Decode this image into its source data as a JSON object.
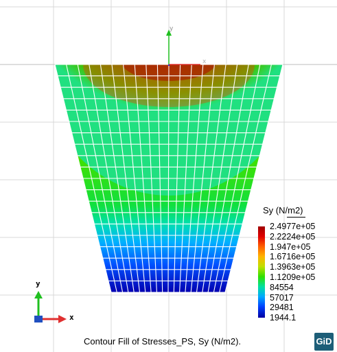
{
  "legend": {
    "title": "Sy (N/m2)",
    "labels": [
      "2.4977e+05",
      "2.2224e+05",
      "1.947e+05",
      "1.6716e+05",
      "1.3963e+05",
      "1.1209e+05",
      "84554",
      "57017",
      "29481",
      "1944.1"
    ],
    "colors": [
      "#8b0000",
      "#e00000",
      "#ff5a00",
      "#ffb000",
      "#c8e000",
      "#38e000",
      "#00e0a0",
      "#00a8ff",
      "#0040ff",
      "#0000a0"
    ]
  },
  "caption": "Contour Fill of Stresses_PS, Sy (N/m2).",
  "logo": "GiD",
  "axis_triad": {
    "x_label": "x",
    "y_label": "y"
  },
  "origin_triad": {
    "x_label": "x",
    "y_label": "y"
  }
}
